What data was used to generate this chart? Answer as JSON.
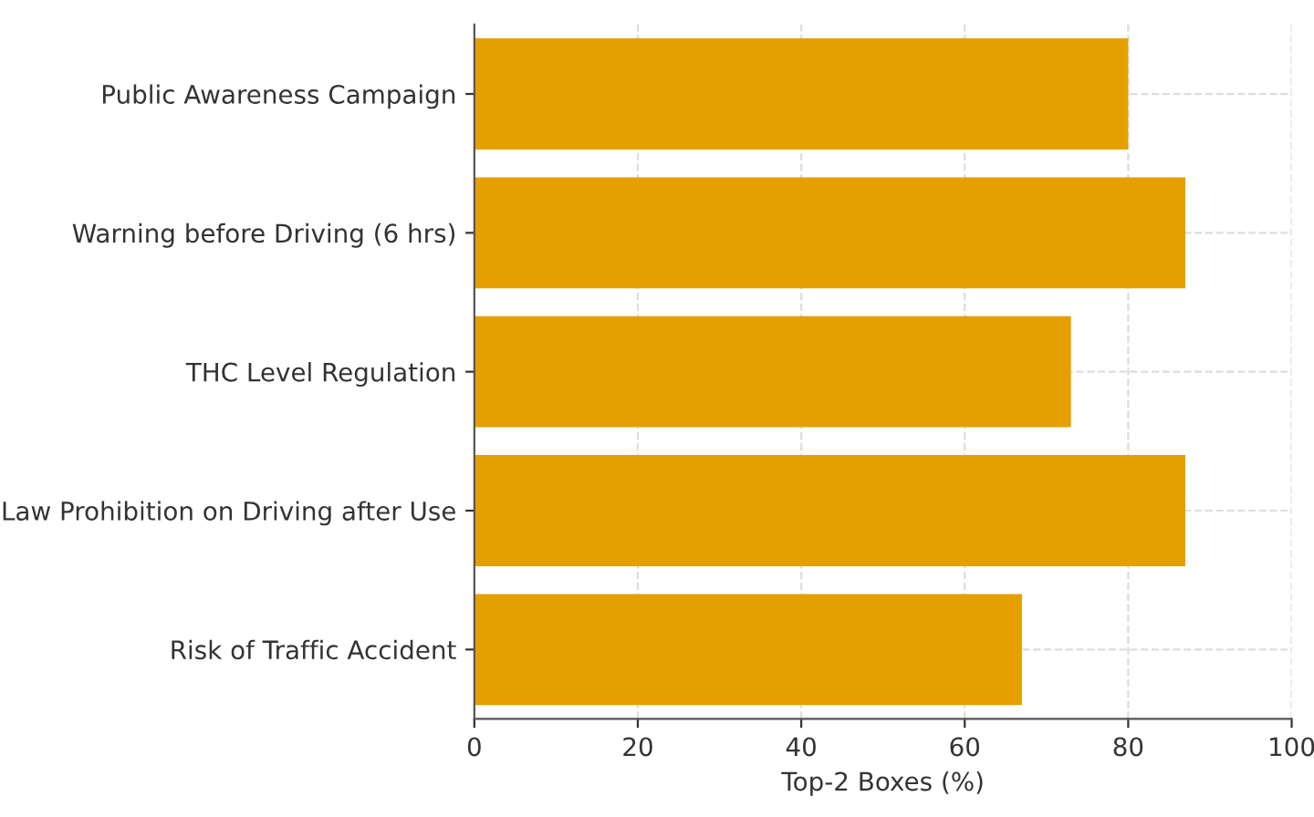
{
  "chart_data": {
    "type": "bar",
    "orientation": "horizontal",
    "xlabel": "Top-2 Boxes (%)",
    "categories": [
      "Public Awareness Campaign",
      "Warning before Driving (6 hrs)",
      "THC Level Regulation",
      "Law Prohibition on Driving after Use",
      "Risk of Traffic Accident"
    ],
    "values": [
      80,
      87,
      73,
      87,
      67
    ],
    "color": "#e69f00",
    "xlim": [
      0,
      100
    ],
    "xticks": [
      0,
      20,
      40,
      60,
      80,
      100
    ],
    "grid": true,
    "line_style": "dashed"
  }
}
